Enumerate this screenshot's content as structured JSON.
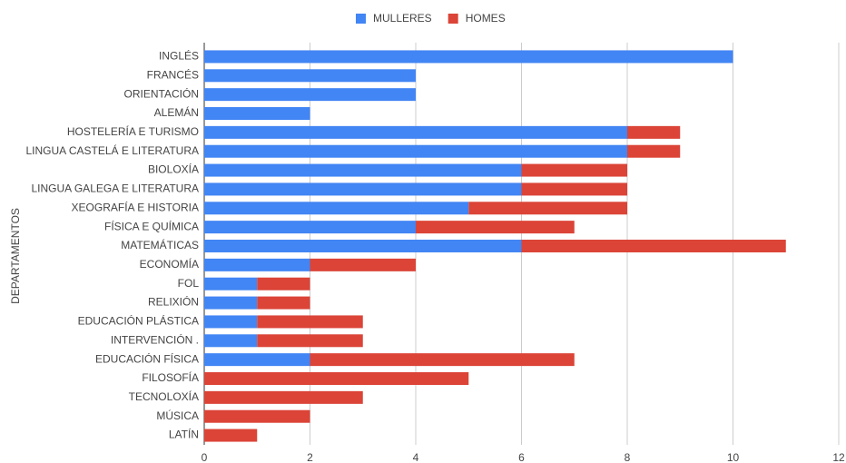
{
  "chart_data": {
    "type": "bar",
    "orientation": "horizontal",
    "stacked": true,
    "y_axis_label": "DEPARTAMENTOS",
    "categories": [
      "INGLÉS",
      "FRANCÉS",
      "ORIENTACIÓN",
      "ALEMÁN",
      "HOSTELERÍA E TURISMO",
      "LINGUA CASTELÁ E LITERATURA",
      "BIOLOXÍA",
      "LINGUA GALEGA E LITERATURA",
      "XEOGRAFÍA E HISTORIA",
      "FÍSICA E QUÍMICA",
      "MATEMÁTICAS",
      "ECONOMÍA",
      "FOL",
      "RELIXIÓN",
      "EDUCACIÓN PLÁSTICA",
      "INTERVENCIÓN .",
      "EDUCACIÓN FÍSICA",
      "FILOSOFÍA",
      "TECNOLOXÍA",
      "MÚSICA",
      "LATÍN"
    ],
    "series": [
      {
        "name": "MULLERES",
        "color": "#4285f4",
        "values": [
          10,
          4,
          4,
          2,
          8,
          8,
          6,
          6,
          5,
          4,
          6,
          2,
          1,
          1,
          1,
          1,
          2,
          0,
          0,
          0,
          0
        ]
      },
      {
        "name": "HOMES",
        "color": "#db4437",
        "values": [
          0,
          0,
          0,
          0,
          1,
          1,
          2,
          2,
          3,
          3,
          5,
          2,
          1,
          1,
          2,
          2,
          5,
          5,
          3,
          2,
          1
        ]
      }
    ],
    "xlim": [
      0,
      12
    ],
    "xticks": [
      0,
      2,
      4,
      6,
      8,
      10,
      12
    ],
    "grid": true,
    "legend": "top"
  }
}
